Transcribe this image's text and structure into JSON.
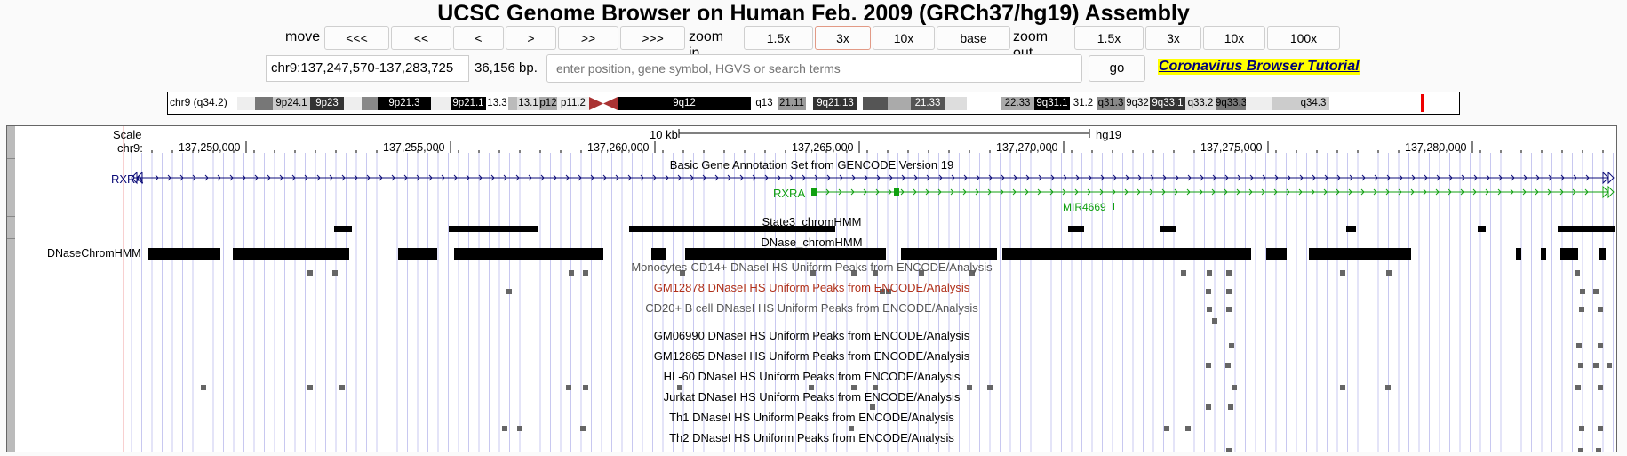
{
  "title": "UCSC Genome Browser on Human Feb. 2009 (GRCh37/hg19) Assembly",
  "nav": {
    "move_label": "move",
    "move_buttons": [
      "<<<",
      "<<",
      "<",
      ">",
      ">>",
      ">>>"
    ],
    "zoom_in_label": "zoom in",
    "zoom_in_buttons": [
      "1.5x",
      "3x",
      "10x",
      "base"
    ],
    "zoom_out_label": "zoom out",
    "zoom_out_buttons": [
      "1.5x",
      "3x",
      "10x",
      "100x"
    ]
  },
  "position": {
    "value": "chr9:137,247,570-137,283,725",
    "size": "36,156 bp.",
    "search_placeholder": "enter position, gene symbol, HGVS or search terms",
    "go_label": "go",
    "tutorial_link": "Coronavirus Browser Tutorial"
  },
  "ideogram": {
    "label": "chr9 (q34.2)",
    "bands": [
      {
        "name": "",
        "color": "#eeeeee"
      },
      {
        "name": "",
        "color": "#777777"
      },
      {
        "name": "9p24.1",
        "color": "#cccccc"
      },
      {
        "name": "9p23",
        "color": "#333333",
        "dark": true
      },
      {
        "name": "",
        "color": "#eeeeee"
      },
      {
        "name": "",
        "color": "#888888"
      },
      {
        "name": "9p21.3",
        "color": "#000000",
        "dark": true
      },
      {
        "name": "",
        "color": "#eeeeee"
      },
      {
        "name": "9p21.1",
        "color": "#000000",
        "dark": true
      },
      {
        "name": "13.3",
        "color": "#ffffff"
      },
      {
        "name": "",
        "color": "#bbbbbb"
      },
      {
        "name": "13.1",
        "color": "#dddddd"
      },
      {
        "name": "p12",
        "color": "#aaaaaa"
      },
      {
        "name": "p11.2",
        "color": "#eeeeee"
      },
      {
        "name": "9q12",
        "color": "#000000",
        "dark": true
      },
      {
        "name": "q13",
        "color": "#ffffff"
      },
      {
        "name": "21.11",
        "color": "#999999"
      },
      {
        "name": "",
        "color": "#ffffff"
      },
      {
        "name": "9q21.13",
        "color": "#333333",
        "dark": true
      },
      {
        "name": "",
        "color": "#ffffff"
      },
      {
        "name": "",
        "color": "#555555"
      },
      {
        "name": "",
        "color": "#aaaaaa"
      },
      {
        "name": "21.33",
        "color": "#555555",
        "dark": true
      },
      {
        "name": "",
        "color": "#dddddd"
      },
      {
        "name": "",
        "color": "#ffffff"
      },
      {
        "name": "22.33",
        "color": "#aaaaaa"
      },
      {
        "name": "9q31.1",
        "color": "#000000",
        "dark": true
      },
      {
        "name": "31.2",
        "color": "#ffffff"
      },
      {
        "name": "q31.3",
        "color": "#888888"
      },
      {
        "name": "9q32",
        "color": "#eeeeee"
      },
      {
        "name": "9q33.1",
        "color": "#333333",
        "dark": true
      },
      {
        "name": "q33.2",
        "color": "#dddddd"
      },
      {
        "name": "9q33.3",
        "color": "#777777"
      },
      {
        "name": "",
        "color": "#eeeeee"
      },
      {
        "name": "",
        "color": "#cccccc"
      },
      {
        "name": "q34.3",
        "color": "#cccccc"
      }
    ]
  },
  "tracks": {
    "scale_label": "Scale",
    "chrom_label": "chr9:",
    "scale_bar_label": "10 kb",
    "assembly": "hg19",
    "ticks": [
      "137,250,000",
      "137,255,000",
      "137,260,000",
      "137,265,000",
      "137,270,000",
      "137,275,000",
      "137,280,000"
    ],
    "gencode_title": "Basic Gene Annotation Set from GENCODE Version 19",
    "gene1": "RXRA",
    "gene2": "RXRA",
    "gene3": "MIR4669",
    "state3_title": "State3_chromHMM",
    "dnase_title": "DNase_chromHMM",
    "dnase_left_label": "DNaseChromHMM",
    "encode": [
      "Monocytes-CD14+ DNaseI HS Uniform Peaks from ENCODE/Analysis",
      "GM12878 DNaseI HS Uniform Peaks from ENCODE/Analysis",
      "CD20+ B cell DNaseI HS Uniform Peaks from ENCODE/Analysis",
      "GM06990 DNaseI HS Uniform Peaks from ENCODE/Analysis",
      "GM12865 DNaseI HS Uniform Peaks from ENCODE/Analysis",
      "HL-60 DNaseI HS Uniform Peaks from ENCODE/Analysis",
      "Jurkat DNaseI HS Uniform Peaks from ENCODE/Analysis",
      "Th1 DNaseI HS Uniform Peaks from ENCODE/Analysis",
      "Th2 DNaseI HS Uniform Peaks from ENCODE/Analysis"
    ],
    "colors": {
      "gene_navy": "#0c0c78",
      "gene_green": "#10a010",
      "gm12878_label": "#b0301a",
      "gray_label": "#555555",
      "grid_blue": "#c8c8f0",
      "window_red": "#f0a0a0"
    }
  }
}
